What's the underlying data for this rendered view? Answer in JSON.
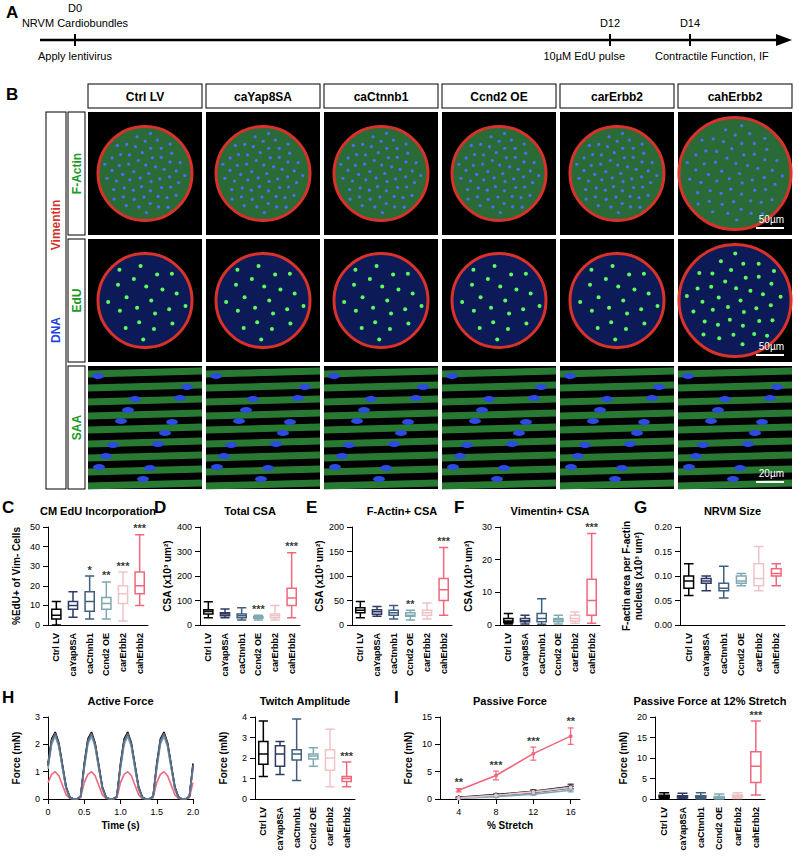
{
  "timeline": {
    "panel": "A",
    "events": [
      {
        "label": "D0",
        "note_above": "NRVM Cardiobundles",
        "note_below": "Apply lentivirus"
      },
      {
        "label": "D12",
        "note_below": "10µM EdU pulse"
      },
      {
        "label": "D14",
        "note_below": "Contractile Function, IF"
      }
    ]
  },
  "micrographs": {
    "panel": "B",
    "columns": [
      "Ctrl LV",
      "caYap8SA",
      "caCtnnb1",
      "Ccnd2 OE",
      "carErbb2",
      "cahErbb2"
    ],
    "rows": [
      {
        "label": "F-Actin",
        "scale_bar": "50µm"
      },
      {
        "label": "EdU",
        "scale_bar": "50µm"
      },
      {
        "label": "SAA",
        "scale_bar": "20µm"
      }
    ],
    "channels": [
      "Vimentin",
      "DNA"
    ]
  },
  "chart_data": [
    {
      "type": "boxplot",
      "panel": "C",
      "title": "CM EdU Incorporation",
      "y_label": "%EdU+ of Vim- Cells",
      "categories": [
        "Ctrl LV",
        "caYap8SA",
        "caCtnnb1",
        "Ccnd2 OE",
        "carErbb2",
        "cahErbb2"
      ],
      "colors": [
        "#000000",
        "#2e3a63",
        "#40607e",
        "#7fa9b3",
        "#efc3c8",
        "#f2677c"
      ],
      "values": [
        [
          0,
          3,
          5,
          8,
          12
        ],
        [
          4,
          8,
          10,
          12,
          17
        ],
        [
          3,
          7,
          12,
          17,
          25
        ],
        [
          3,
          8,
          11,
          14,
          22
        ],
        [
          2,
          11,
          16,
          20,
          27
        ],
        [
          10,
          16,
          20,
          27,
          46
        ]
      ],
      "significance": [
        null,
        null,
        "*",
        "**",
        "***",
        "***"
      ],
      "ylim": [
        0,
        50
      ],
      "yticks": [
        0,
        10,
        20,
        30,
        40,
        50
      ],
      "grid": false
    },
    {
      "type": "boxplot",
      "panel": "D",
      "title": "Total CSA",
      "y_label": "CSA (x10³ um²)",
      "categories": [
        "Ctrl LV",
        "caYap8SA",
        "caCtnnb1",
        "Ccnd2 OE",
        "carErbb2",
        "cahErbb2"
      ],
      "colors": [
        "#000000",
        "#2e3a63",
        "#40607e",
        "#7fa9b3",
        "#efc3c8",
        "#f2677c"
      ],
      "values": [
        [
          30,
          45,
          55,
          62,
          95
        ],
        [
          30,
          38,
          45,
          50,
          65
        ],
        [
          20,
          30,
          38,
          45,
          70
        ],
        [
          20,
          28,
          32,
          35,
          40
        ],
        [
          20,
          30,
          38,
          45,
          80
        ],
        [
          30,
          80,
          110,
          150,
          295
        ]
      ],
      "significance": [
        null,
        null,
        null,
        "***",
        null,
        "***"
      ],
      "ylim": [
        0,
        400
      ],
      "yticks": [
        0,
        100,
        200,
        300,
        400
      ],
      "grid": false
    },
    {
      "type": "boxplot",
      "panel": "E",
      "title": "F-Actin+ CSA",
      "y_label": "CSA (x10³ um²)",
      "categories": [
        "Ctrl LV",
        "caYap8SA",
        "caCtnnb1",
        "Ccnd2 OE",
        "carErbb2",
        "cahErbb2"
      ],
      "colors": [
        "#000000",
        "#2e3a63",
        "#40607e",
        "#7fa9b3",
        "#efc3c8",
        "#f2677c"
      ],
      "values": [
        [
          15,
          25,
          30,
          35,
          48
        ],
        [
          18,
          22,
          27,
          31,
          38
        ],
        [
          12,
          20,
          25,
          30,
          40
        ],
        [
          10,
          18,
          20,
          25,
          30
        ],
        [
          12,
          20,
          25,
          30,
          45
        ],
        [
          20,
          50,
          72,
          95,
          158
        ]
      ],
      "significance": [
        null,
        null,
        null,
        "**",
        null,
        "***"
      ],
      "ylim": [
        0,
        200
      ],
      "yticks": [
        0,
        50,
        100,
        150,
        200
      ],
      "grid": false
    },
    {
      "type": "boxplot",
      "panel": "F",
      "title": "Vimentin+ CSA",
      "y_label": "CSA (x10³ um²)",
      "categories": [
        "Ctrl LV",
        "caYap8SA",
        "caCtnnb1",
        "Ccnd2 OE",
        "carErbb2",
        "cahErbb2"
      ],
      "colors": [
        "#000000",
        "#2e3a63",
        "#40607e",
        "#7fa9b3",
        "#efc3c8",
        "#f2677c"
      ],
      "values": [
        [
          0.3,
          0.8,
          1.2,
          2,
          3.5
        ],
        [
          0.3,
          1,
          1.3,
          2,
          3
        ],
        [
          0.2,
          1,
          2,
          3.5,
          8
        ],
        [
          0.3,
          1,
          1.5,
          2,
          3
        ],
        [
          0.5,
          1.2,
          2,
          3,
          4
        ],
        [
          0.5,
          3,
          7.5,
          14,
          28
        ]
      ],
      "significance": [
        null,
        null,
        null,
        null,
        null,
        "***"
      ],
      "ylim": [
        0,
        30
      ],
      "yticks": [
        0,
        10,
        20,
        30
      ],
      "grid": false
    },
    {
      "type": "boxplot",
      "panel": "G",
      "title": "NRVM Size",
      "y_label": "F-actin area per F-actin\nnucleus (x10³ um²)",
      "categories": [
        "Ctrl LV",
        "caYap8SA",
        "caCtnnb1",
        "Ccnd2 OE",
        "carErbb2",
        "cahErbb2"
      ],
      "colors": [
        "#000000",
        "#2e3a63",
        "#40607e",
        "#7fa9b3",
        "#efc3c8",
        "#f2677c"
      ],
      "values": [
        [
          0.06,
          0.075,
          0.09,
          0.1,
          0.125
        ],
        [
          0.07,
          0.085,
          0.09,
          0.095,
          0.1
        ],
        [
          0.055,
          0.07,
          0.075,
          0.085,
          0.12
        ],
        [
          0.08,
          0.085,
          0.09,
          0.1,
          0.105
        ],
        [
          0.07,
          0.08,
          0.095,
          0.125,
          0.16
        ],
        [
          0.08,
          0.1,
          0.105,
          0.115,
          0.125
        ]
      ],
      "ylim": [
        0,
        0.2
      ],
      "yticks": [
        {
          "value": 0,
          "label": "0.00"
        },
        {
          "value": 0.05,
          "label": "0.05"
        },
        {
          "value": 0.1,
          "label": "0.10"
        },
        {
          "value": 0.15,
          "label": "0.15"
        },
        {
          "value": 0.2,
          "label": "0.20"
        }
      ],
      "grid": false
    },
    {
      "type": "line",
      "panel": "H",
      "title": "Active Force",
      "x_label": "Time (s)",
      "y_label": "Force (mN)",
      "marker": "none",
      "x": [
        0,
        0.05,
        0.1,
        0.15,
        0.2,
        0.25,
        0.3,
        0.35,
        0.4,
        0.45,
        0.5,
        0.55,
        0.6,
        0.65,
        0.7,
        0.75,
        0.8,
        0.85,
        0.9,
        0.95,
        1,
        1.05,
        1.1,
        1.15,
        1.2,
        1.25,
        1.3,
        1.35,
        1.4,
        1.45,
        1.5,
        1.55,
        1.6,
        1.65,
        1.7,
        1.75,
        1.8,
        1.85,
        1.9,
        1.95,
        2
      ],
      "xlim": [
        0,
        2
      ],
      "xticks": [
        0,
        0.5,
        {
          "value": 1,
          "label": "1.0"
        },
        1.5,
        {
          "value": 2,
          "label": "2.0"
        }
      ],
      "ylim": [
        0,
        3
      ],
      "yticks": [
        0,
        1,
        2,
        3
      ],
      "grid": false,
      "series": [
        {
          "name": "cahErbb2",
          "color": "#f2677c",
          "values": [
            0.6,
            0.9,
            1.0,
            0.85,
            0.5,
            0.15,
            0.02,
            0,
            0,
            0.05,
            0.6,
            0.9,
            1.0,
            0.85,
            0.5,
            0.15,
            0.02,
            0,
            0,
            0.05,
            0.6,
            0.9,
            1.0,
            0.85,
            0.5,
            0.15,
            0.02,
            0,
            0,
            0.05,
            0.6,
            0.9,
            1.0,
            0.85,
            0.5,
            0.15,
            0.02,
            0,
            0,
            0.05,
            0.6
          ]
        },
        {
          "name": "Ctrl LV",
          "color": "#000000",
          "values": [
            1.3,
            2.2,
            2.45,
            2.05,
            1.25,
            0.45,
            0.08,
            0,
            0,
            0.1,
            1.3,
            2.2,
            2.45,
            2.05,
            1.25,
            0.45,
            0.08,
            0,
            0,
            0.1,
            1.3,
            2.2,
            2.45,
            2.05,
            1.25,
            0.45,
            0.08,
            0,
            0,
            0.1,
            1.3,
            2.2,
            2.45,
            2.05,
            1.25,
            0.45,
            0.08,
            0,
            0,
            0.1,
            1.3
          ]
        },
        {
          "name": "caYap8SA",
          "color": "#2e3a63",
          "values": [
            1.2,
            2.1,
            2.4,
            2.0,
            1.2,
            0.4,
            0.05,
            0,
            0,
            0.08,
            1.2,
            2.1,
            2.4,
            2.0,
            1.2,
            0.4,
            0.05,
            0,
            0,
            0.08,
            1.2,
            2.1,
            2.4,
            2.0,
            1.2,
            0.4,
            0.05,
            0,
            0,
            0.08,
            1.2,
            2.1,
            2.4,
            2.0,
            1.2,
            0.4,
            0.05,
            0,
            0,
            0.08,
            1.2
          ]
        },
        {
          "name": "caCtnnb1",
          "color": "#40607e",
          "values": [
            1.25,
            2.15,
            2.35,
            1.95,
            1.15,
            0.4,
            0.05,
            0,
            0,
            0.1,
            1.25,
            2.15,
            2.35,
            1.95,
            1.15,
            0.4,
            0.05,
            0,
            0,
            0.1,
            1.25,
            2.15,
            2.35,
            1.95,
            1.15,
            0.4,
            0.05,
            0,
            0,
            0.1,
            1.25,
            2.15,
            2.35,
            1.95,
            1.15,
            0.4,
            0.05,
            0,
            0,
            0.1,
            1.25
          ]
        },
        {
          "name": "Ccnd2 OE",
          "color": "#7fa9b3",
          "values": [
            1.1,
            2.0,
            2.3,
            1.9,
            1.1,
            0.35,
            0.05,
            0,
            0,
            0.08,
            1.1,
            2.0,
            2.3,
            1.9,
            1.1,
            0.35,
            0.05,
            0,
            0,
            0.08,
            1.1,
            2.0,
            2.3,
            1.9,
            1.1,
            0.35,
            0.05,
            0,
            0,
            0.08,
            1.1,
            2.0,
            2.3,
            1.9,
            1.1,
            0.35,
            0.05,
            0,
            0,
            0.08,
            1.1
          ]
        },
        {
          "name": "carErbb2",
          "color": "#5d6d86",
          "values": [
            1.2,
            2.1,
            2.4,
            2.0,
            1.2,
            0.4,
            0.06,
            0,
            0,
            0.1,
            1.2,
            2.1,
            2.4,
            2.0,
            1.2,
            0.4,
            0.06,
            0,
            0,
            0.1,
            1.2,
            2.1,
            2.4,
            2.0,
            1.2,
            0.4,
            0.06,
            0,
            0,
            0.1,
            1.2,
            2.1,
            2.4,
            2.0,
            1.2,
            0.4,
            0.06,
            0,
            0,
            0.1,
            1.2
          ]
        }
      ]
    },
    {
      "type": "boxplot",
      "title": "Twitch Amplitude",
      "y_label": "Force (mN)",
      "categories": [
        "Ctrl LV",
        "caYap8SA",
        "caCtnnb1",
        "Ccnd2 OE",
        "carErbb2",
        "cahErbb2"
      ],
      "colors": [
        "#000000",
        "#2e3a63",
        "#40607e",
        "#7fa9b3",
        "#efc3c8",
        "#f2677c"
      ],
      "values": [
        [
          1.1,
          1.7,
          2.2,
          2.8,
          3.8
        ],
        [
          1.2,
          1.6,
          2.2,
          2.6,
          2.8
        ],
        [
          0.9,
          1.9,
          2.2,
          2.4,
          3.9
        ],
        [
          1.6,
          1.95,
          2.1,
          2.2,
          2.5
        ],
        [
          0.6,
          1.4,
          2.0,
          2.4,
          3.4
        ],
        [
          0.6,
          0.85,
          1.0,
          1.1,
          1.8
        ]
      ],
      "significance": [
        null,
        null,
        null,
        null,
        null,
        "***"
      ],
      "ylim": [
        0,
        4
      ],
      "yticks": [
        0,
        1,
        2,
        3,
        4
      ],
      "grid": false
    },
    {
      "type": "line",
      "panel": "I",
      "title": "Passive Force",
      "x_label": "% Stretch",
      "y_label": "Force (mN)",
      "marker": "circle",
      "x": [
        4,
        8,
        12,
        16
      ],
      "xlim": [
        2,
        17
      ],
      "xticks": [
        4,
        8,
        12,
        16
      ],
      "ylim": [
        0,
        15
      ],
      "yticks": [
        0,
        5,
        10,
        15
      ],
      "grid": false,
      "series": [
        {
          "name": "Ctrl LV",
          "color": "#000000",
          "values": [
            0.3,
            0.8,
            1.4,
            2.3
          ],
          "errors": [
            0.1,
            0.2,
            0.3,
            0.4
          ]
        },
        {
          "name": "caYap8SA",
          "color": "#2e3a63",
          "values": [
            0.2,
            0.6,
            1.2,
            2.0
          ],
          "errors": [
            0.1,
            0.2,
            0.3,
            0.3
          ]
        },
        {
          "name": "caCtnnb1",
          "color": "#40607e",
          "values": [
            0.2,
            0.7,
            1.3,
            2.2
          ],
          "errors": [
            0.1,
            0.2,
            0.3,
            0.3
          ]
        },
        {
          "name": "Ccnd2 OE",
          "color": "#7fa9b3",
          "values": [
            0.1,
            0.4,
            0.9,
            1.6
          ],
          "errors": [
            0.1,
            0.1,
            0.2,
            0.3
          ]
        },
        {
          "name": "carErbb2",
          "color": "#efc3c8",
          "values": [
            0.2,
            0.7,
            1.3,
            2.1
          ],
          "errors": [
            0.1,
            0.2,
            0.3,
            0.4
          ]
        },
        {
          "name": "cahErbb2",
          "color": "#f2677c",
          "values": [
            1.6,
            4.3,
            8.3,
            11.5
          ],
          "errors": [
            0.3,
            0.8,
            1.2,
            1.5
          ],
          "annotations": [
            "**",
            "***",
            "***",
            "**"
          ]
        }
      ]
    },
    {
      "type": "boxplot",
      "title": "Passive Force at 12% Stretch",
      "y_label": "Force (mN)",
      "categories": [
        "Ctrl LV",
        "caYap8SA",
        "caCtnnb1",
        "Ccnd2 OE",
        "carErbb2",
        "cahErbb2"
      ],
      "colors": [
        "#000000",
        "#2e3a63",
        "#40607e",
        "#7fa9b3",
        "#efc3c8",
        "#f2677c"
      ],
      "values": [
        [
          0,
          0.3,
          0.6,
          0.9,
          1.5
        ],
        [
          0.1,
          0.3,
          0.5,
          0.8,
          1.4
        ],
        [
          0,
          0.3,
          0.5,
          0.8,
          1.5
        ],
        [
          0,
          0.2,
          0.4,
          0.6,
          1.2
        ],
        [
          0.1,
          0.4,
          0.6,
          1.0,
          1.5
        ],
        [
          1,
          4,
          8,
          11.5,
          19
        ]
      ],
      "significance": [
        null,
        null,
        null,
        null,
        null,
        "***"
      ],
      "ylim": [
        0,
        20
      ],
      "yticks": [
        0,
        5,
        10,
        15,
        20
      ],
      "grid": false
    }
  ]
}
